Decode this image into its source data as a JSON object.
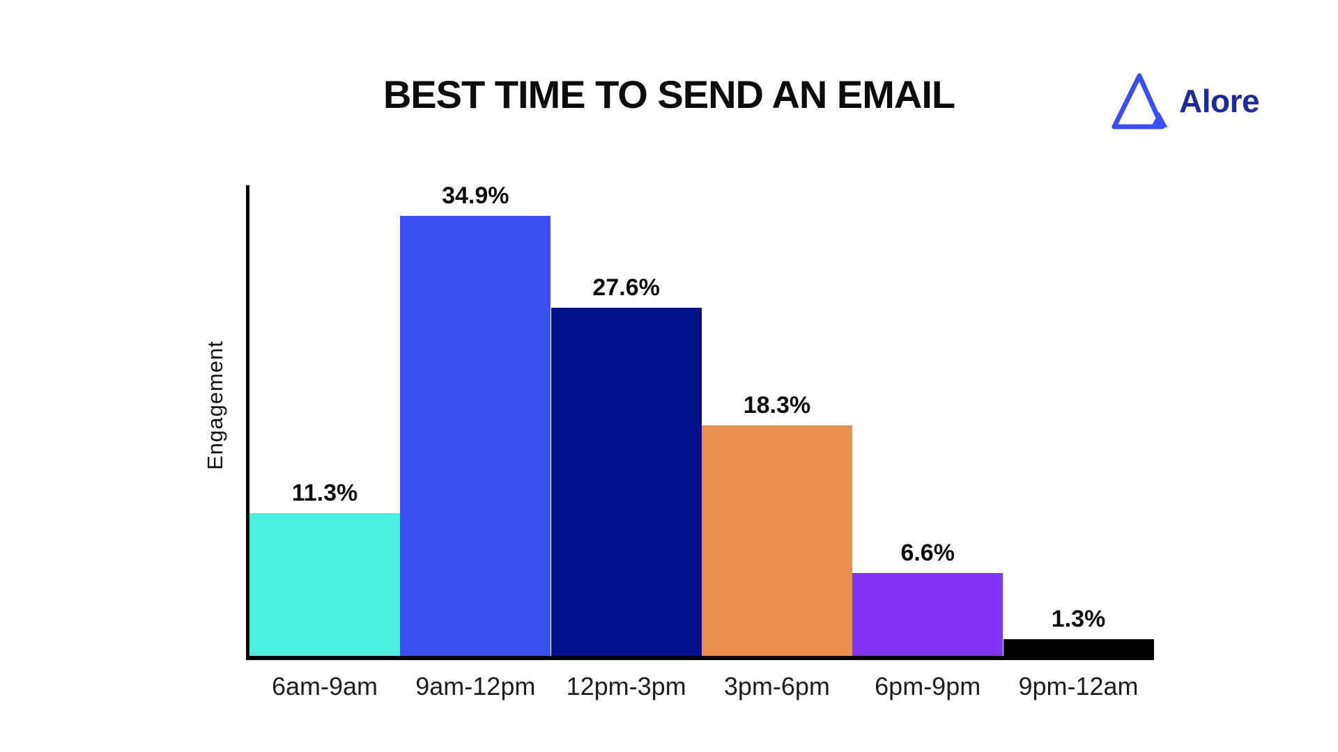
{
  "brand": {
    "name": "Alore",
    "logo_outline_color": "#3B4FF0",
    "logo_text_color": "#1E2B97"
  },
  "chart_data": {
    "type": "bar",
    "title": "BEST TIME TO SEND AN EMAIL",
    "xlabel": "",
    "ylabel": "Engagement",
    "categories": [
      "6am-9am",
      "9am-12pm",
      "12pm-3pm",
      "3pm-6pm",
      "6pm-9pm",
      "9pm-12am"
    ],
    "values": [
      11.3,
      34.9,
      27.6,
      18.3,
      6.6,
      1.3
    ],
    "value_labels": [
      "11.3%",
      "34.9%",
      "27.6%",
      "18.3%",
      "6.6%",
      "1.3%"
    ],
    "bar_colors": [
      "#4DF0DC",
      "#3B4FF0",
      "#03108A",
      "#E8914E",
      "#8133F2",
      "#000000"
    ],
    "ylim": [
      0,
      37.5
    ],
    "grid": false,
    "legend": false,
    "value_label_color": "#0c0c0c",
    "axis_color": "#000000"
  }
}
